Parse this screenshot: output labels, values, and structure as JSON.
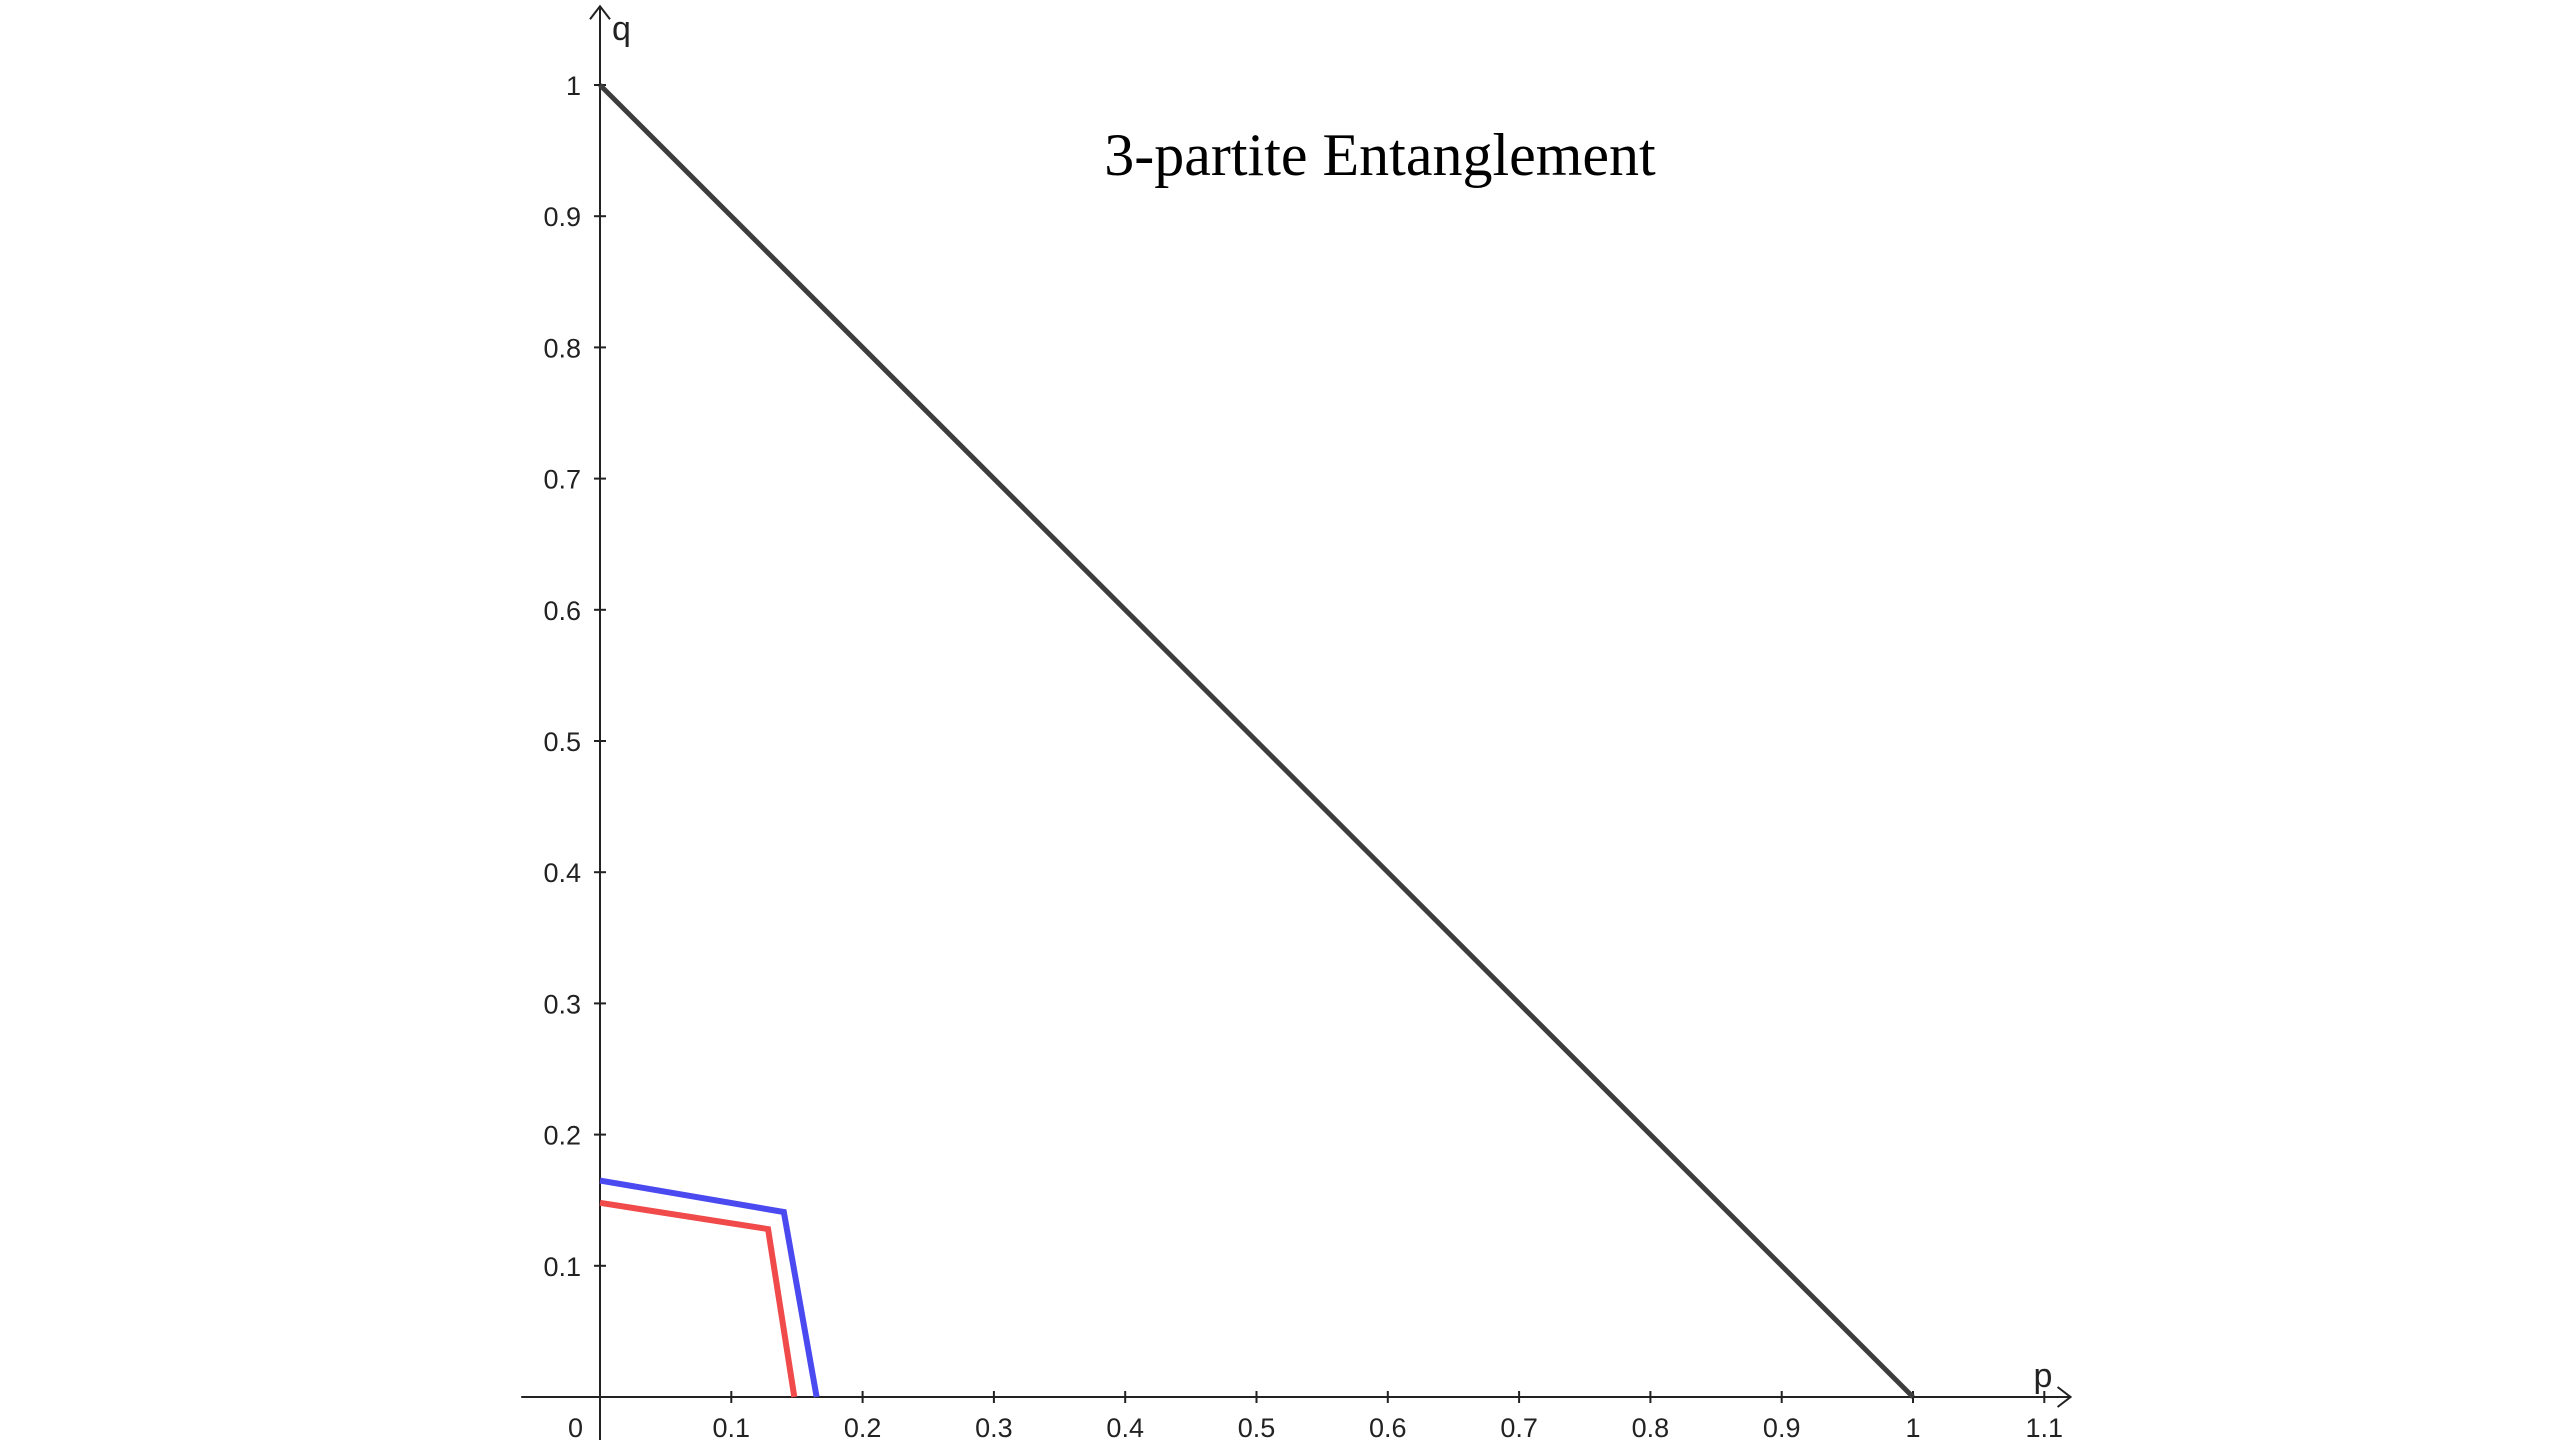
{
  "chart_data": {
    "type": "line",
    "title": "3-partite Entanglement",
    "xlabel": "p",
    "ylabel": "q",
    "origin_label": "0",
    "xlim": [
      -0.06,
      1.12
    ],
    "ylim": [
      -0.05,
      1.06
    ],
    "grid": false,
    "x_ticks": [
      0.1,
      0.2,
      0.3,
      0.4,
      0.5,
      0.6,
      0.7,
      0.8,
      0.9,
      1,
      1.1
    ],
    "y_ticks": [
      0.1,
      0.2,
      0.3,
      0.4,
      0.5,
      0.6,
      0.7,
      0.8,
      0.9,
      1
    ],
    "series": [
      {
        "color": "#3d3d3d",
        "points": [
          [
            0,
            1
          ],
          [
            1,
            0
          ]
        ]
      },
      {
        "color": "#4a4af0",
        "points": [
          [
            0,
            0.165
          ],
          [
            0.14,
            0.141
          ],
          [
            0.165,
            0
          ]
        ]
      },
      {
        "color": "#f04a4a",
        "points": [
          [
            0,
            0.148
          ],
          [
            0.128,
            0.128
          ],
          [
            0.148,
            0
          ]
        ]
      }
    ]
  }
}
